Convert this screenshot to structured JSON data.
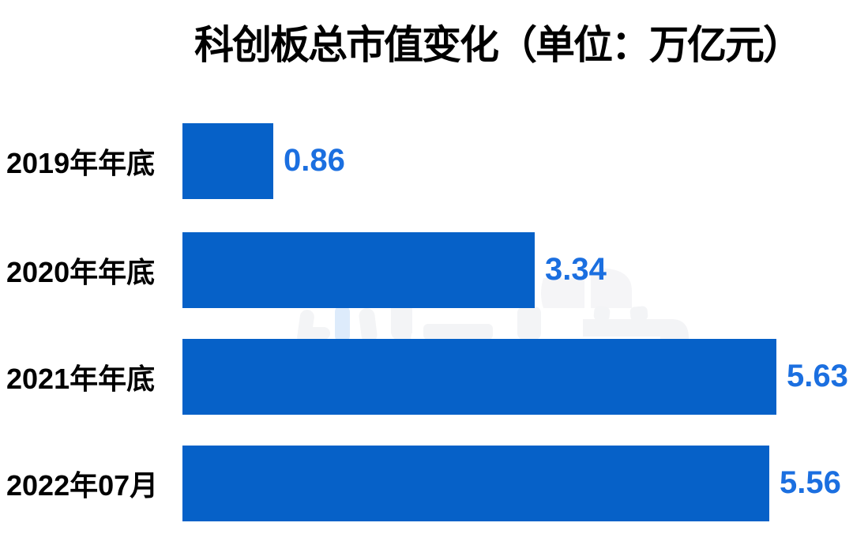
{
  "title": "科创板总市值变化（单位：万亿元）",
  "chart_data": {
    "type": "bar",
    "orientation": "horizontal",
    "title": "科创板总市值变化（单位：万亿元）",
    "unit": "万亿元",
    "categories": [
      "2019年年底",
      "2020年年底",
      "2021年年底",
      "2022年07月"
    ],
    "values": [
      0.86,
      3.34,
      5.63,
      5.56
    ],
    "value_labels": [
      "0.86",
      "3.34",
      "5.63",
      "5.56"
    ],
    "xlabel": "",
    "ylabel": "",
    "xlim": [
      0,
      6
    ],
    "grid": "off",
    "legend": "none",
    "bar_color": "#0661c8",
    "value_label_color": "#1b6fe0",
    "category_label_color": "#000000",
    "background_color": "#ffffff"
  },
  "watermark": {
    "description": "faint partially-hidden logo glyphs behind bars",
    "color": "#f3f4f6",
    "accent_color": "#ddebfb"
  }
}
